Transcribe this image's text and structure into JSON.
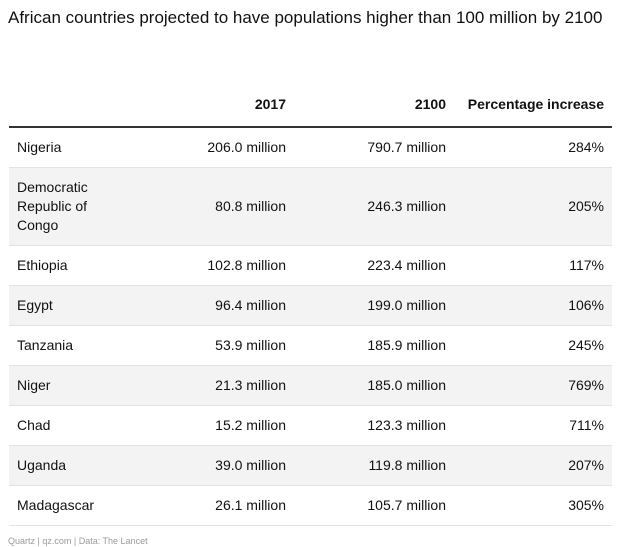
{
  "chart_data": {
    "type": "table",
    "title": "African countries projected to have populations higher than 100 million by 2100",
    "columns": [
      "",
      "2017",
      "2100",
      "Percentage increase"
    ],
    "rows": [
      {
        "country": "Nigeria",
        "pop_2017": "206.0 million",
        "pop_2100": "790.7 million",
        "increase": "284%"
      },
      {
        "country": "Democratic Republic of Congo",
        "pop_2017": "80.8 million",
        "pop_2100": "246.3 million",
        "increase": "205%"
      },
      {
        "country": "Ethiopia",
        "pop_2017": "102.8 million",
        "pop_2100": "223.4 million",
        "increase": "117%"
      },
      {
        "country": "Egypt",
        "pop_2017": "96.4 million",
        "pop_2100": "199.0 million",
        "increase": "106%"
      },
      {
        "country": "Tanzania",
        "pop_2017": "53.9 million",
        "pop_2100": "185.9 million",
        "increase": "245%"
      },
      {
        "country": "Niger",
        "pop_2017": "21.3 million",
        "pop_2100": "185.0 million",
        "increase": "769%"
      },
      {
        "country": "Chad",
        "pop_2017": "15.2 million",
        "pop_2100": "123.3 million",
        "increase": "711%"
      },
      {
        "country": "Uganda",
        "pop_2017": "39.0 million",
        "pop_2100": "119.8 million",
        "increase": "207%"
      },
      {
        "country": "Madagascar",
        "pop_2017": "26.1 million",
        "pop_2100": "105.7 million",
        "increase": "305%"
      }
    ],
    "source": "Quartz | qz.com | Data: The Lancet"
  }
}
